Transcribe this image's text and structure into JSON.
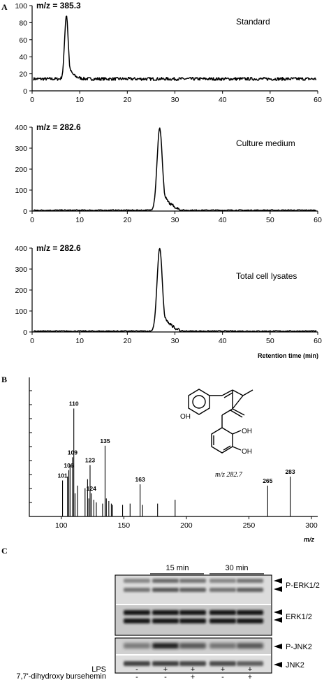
{
  "panels": {
    "a": "A",
    "b": "B",
    "c": "C"
  },
  "chart_data": [
    {
      "type": "line",
      "mz_label": "m/z = 385.3",
      "annotation": "Standard",
      "xlabel": "",
      "xlim": [
        0,
        60
      ],
      "ylim": [
        0,
        100
      ],
      "xticks": [
        0,
        10,
        20,
        30,
        40,
        50,
        60
      ],
      "yticks": [
        0,
        20,
        40,
        60,
        80,
        100
      ],
      "baseline": 14,
      "peaks": [
        {
          "x": 7.2,
          "y": 89
        }
      ]
    },
    {
      "type": "line",
      "mz_label": "m/z = 282.6",
      "annotation": "Culture medium",
      "xlabel": "",
      "xlim": [
        0,
        60
      ],
      "ylim": [
        0,
        400
      ],
      "xticks": [
        0,
        10,
        20,
        30,
        40,
        50,
        60
      ],
      "yticks": [
        0,
        100,
        200,
        300,
        400
      ],
      "baseline": 4,
      "peaks": [
        {
          "x": 26.8,
          "y": 395
        }
      ]
    },
    {
      "type": "line",
      "mz_label": "m/z = 282.6",
      "annotation": "Total cell lysates",
      "xlabel": "Retention time (min)",
      "xlim": [
        0,
        60
      ],
      "ylim": [
        0,
        400
      ],
      "xticks": [
        0,
        10,
        20,
        30,
        40,
        50,
        60
      ],
      "yticks": [
        0,
        100,
        200,
        300,
        400
      ],
      "baseline": 4,
      "peaks": [
        {
          "x": 26.8,
          "y": 398
        }
      ]
    },
    {
      "type": "bar",
      "xlabel": "m/z",
      "xlim": [
        75,
        300
      ],
      "xticks": [
        100,
        150,
        200,
        250,
        300
      ],
      "ylim": [
        0,
        100
      ],
      "values": [
        {
          "x": 101,
          "y": 28,
          "label": "101"
        },
        {
          "x": 105,
          "y": 31,
          "label": ""
        },
        {
          "x": 106,
          "y": 36,
          "label": "106"
        },
        {
          "x": 107,
          "y": 40,
          "label": ""
        },
        {
          "x": 109,
          "y": 46,
          "label": "109"
        },
        {
          "x": 110,
          "y": 84,
          "label": "110"
        },
        {
          "x": 111,
          "y": 18,
          "label": ""
        },
        {
          "x": 113,
          "y": 24,
          "label": ""
        },
        {
          "x": 119,
          "y": 22,
          "label": ""
        },
        {
          "x": 121,
          "y": 29,
          "label": ""
        },
        {
          "x": 122,
          "y": 14,
          "label": ""
        },
        {
          "x": 123,
          "y": 40,
          "label": "123"
        },
        {
          "x": 124,
          "y": 18,
          "label": "124"
        },
        {
          "x": 126,
          "y": 13,
          "label": ""
        },
        {
          "x": 128,
          "y": 11,
          "label": ""
        },
        {
          "x": 133,
          "y": 10,
          "label": ""
        },
        {
          "x": 135,
          "y": 55,
          "label": "135"
        },
        {
          "x": 136,
          "y": 14,
          "label": ""
        },
        {
          "x": 138,
          "y": 12,
          "label": ""
        },
        {
          "x": 140,
          "y": 10,
          "label": ""
        },
        {
          "x": 141,
          "y": 9,
          "label": ""
        },
        {
          "x": 149,
          "y": 9,
          "label": ""
        },
        {
          "x": 155,
          "y": 10,
          "label": ""
        },
        {
          "x": 163,
          "y": 25,
          "label": "163"
        },
        {
          "x": 165,
          "y": 9,
          "label": ""
        },
        {
          "x": 177,
          "y": 10,
          "label": ""
        },
        {
          "x": 191,
          "y": 13,
          "label": ""
        },
        {
          "x": 265,
          "y": 24,
          "label": "265"
        },
        {
          "x": 283,
          "y": 31,
          "label": "283"
        }
      ],
      "compound_label": "m/z 282.7",
      "oh_labels": [
        "OH",
        "OH",
        "OH"
      ]
    }
  ],
  "western_blot": {
    "time_labels": [
      "15 min",
      "30 min"
    ],
    "band_labels": [
      "P-ERK1/2",
      "ERK1/2",
      "P-JNK2",
      "JNK2"
    ],
    "row_labels": [
      "LPS",
      "7,7'-dihydroxy bursehemin"
    ],
    "lps": [
      "-",
      "+",
      "+",
      "+",
      "+"
    ],
    "compound": [
      "-",
      "-",
      "+",
      "-",
      "+"
    ]
  }
}
